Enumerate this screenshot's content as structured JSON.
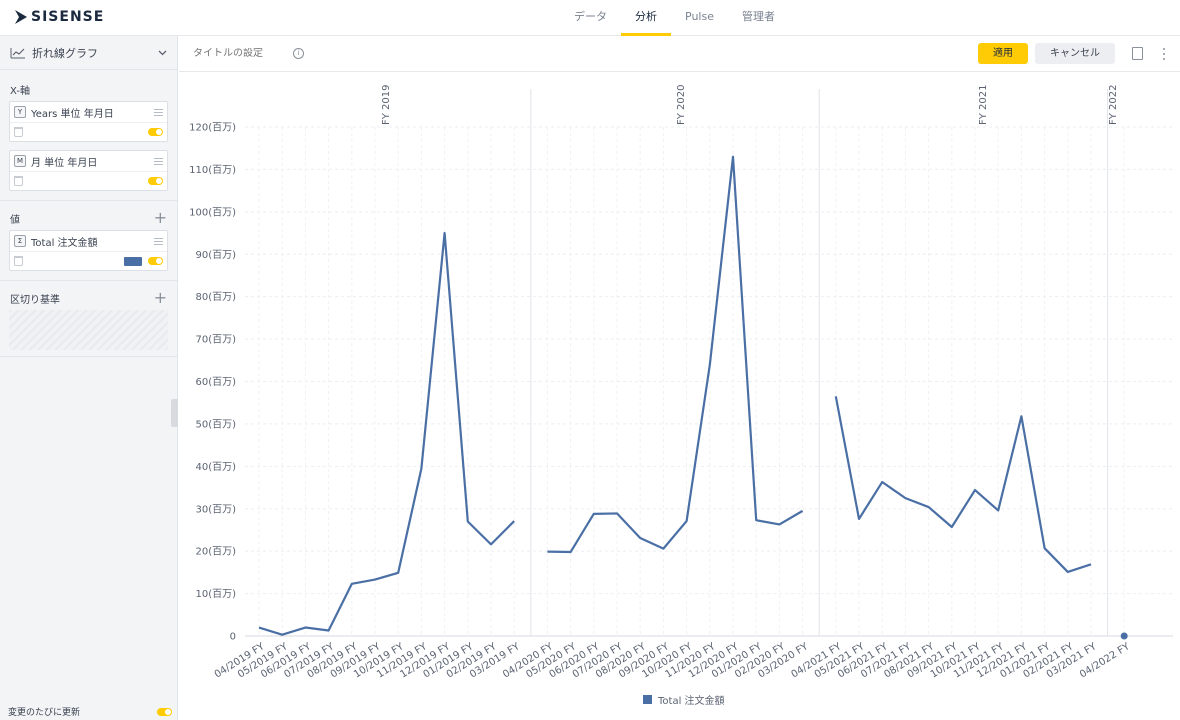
{
  "app": {
    "logo_text": "SISENSE",
    "tabs": [
      {
        "label": "データ",
        "active": false
      },
      {
        "label": "分析",
        "active": true
      },
      {
        "label": "Pulse",
        "active": false
      },
      {
        "label": "管理者",
        "active": false
      }
    ]
  },
  "sidebar": {
    "chart_type": "折れ線グラフ",
    "x_axis": {
      "title": "X-軸",
      "fields": [
        {
          "badge": "Y",
          "label": "Years 単位 年月日"
        },
        {
          "badge": "M",
          "label": "月 単位 年月日"
        }
      ]
    },
    "values": {
      "title": "値",
      "fields": [
        {
          "badge": "Σ",
          "label": "Total 注文金額",
          "color": "#4a6fa5"
        }
      ]
    },
    "break_by": {
      "title": "区切り基準"
    },
    "auto_update": "変更のたびに更新"
  },
  "toolbar": {
    "title_placeholder": "タイトルの設定",
    "apply_label": "適用",
    "cancel_label": "キャンセル"
  },
  "chart_data": {
    "type": "line",
    "series_color": "#4a6fa5",
    "ylim": [
      0,
      120
    ],
    "y_ticks": [
      "0",
      "10(百万)",
      "20(百万)",
      "30(百万)",
      "40(百万)",
      "50(百万)",
      "60(百万)",
      "70(百万)",
      "80(百万)",
      "90(百万)",
      "100(百万)",
      "110(百万)",
      "120(百万)"
    ],
    "groups": [
      {
        "label": "FY 2019",
        "x": [
          "04/2019 FY",
          "05/2019 FY",
          "06/2019 FY",
          "07/2019 FY",
          "08/2019 FY",
          "09/2019 FY",
          "10/2019 FY",
          "11/2019 FY",
          "12/2019 FY",
          "01/2019 FY",
          "02/2019 FY",
          "03/2019 FY"
        ],
        "values": [
          2,
          0.3,
          2,
          1.3,
          12.3,
          13.3,
          14.9,
          39.5,
          95,
          27,
          21.6,
          27.1
        ]
      },
      {
        "label": "FY 2020",
        "x": [
          "04/2020 FY",
          "05/2020 FY",
          "06/2020 FY",
          "07/2020 FY",
          "08/2020 FY",
          "09/2020 FY",
          "10/2020 FY",
          "11/2020 FY",
          "12/2020 FY",
          "01/2020 FY",
          "02/2020 FY",
          "03/2020 FY"
        ],
        "values": [
          19.9,
          19.8,
          28.8,
          28.9,
          23.1,
          20.6,
          27.1,
          63.9,
          113,
          27.3,
          26.3,
          29.5
        ]
      },
      {
        "label": "FY 2021",
        "x": [
          "04/2021 FY",
          "05/2021 FY",
          "06/2021 FY",
          "07/2021 FY",
          "08/2021 FY",
          "09/2021 FY",
          "10/2021 FY",
          "11/2021 FY",
          "12/2021 FY",
          "01/2021 FY",
          "02/2021 FY",
          "03/2021 FY"
        ],
        "values": [
          56.5,
          27.6,
          36.3,
          32.5,
          30.4,
          25.7,
          34.4,
          29.6,
          51.8,
          20.7,
          15.1,
          16.9
        ]
      },
      {
        "label": "FY 2022",
        "x": [
          "04/2022 FY"
        ],
        "values": [
          0
        ]
      }
    ],
    "legend": {
      "label": "Total 注文金額",
      "position": "bottom"
    }
  }
}
